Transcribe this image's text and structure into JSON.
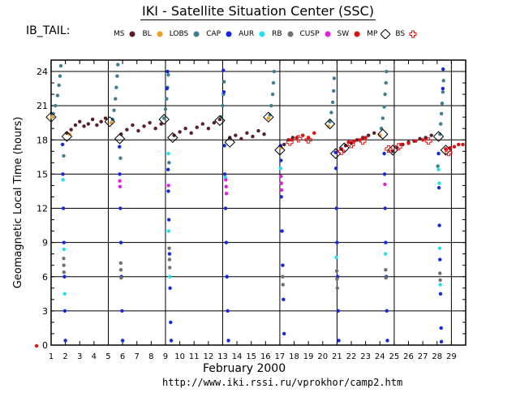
{
  "header": {
    "title": "IKI - Satellite Situation Center (SSC)",
    "region_label": "IB_TAIL:",
    "month_label": "February   2000",
    "url": "http://www.iki.rssi.ru/vprokhor/camp2.htm"
  },
  "legend": [
    {
      "label": "MS",
      "color": "#5a1e2a",
      "shape": "circle"
    },
    {
      "label": "BL",
      "color": "#f0a020",
      "shape": "circle"
    },
    {
      "label": "LOBS",
      "color": "#3a8090",
      "shape": "circle"
    },
    {
      "label": "CAP",
      "color": "#1428e0",
      "shape": "circle"
    },
    {
      "label": "AUR",
      "color": "#20e0f0",
      "shape": "circle"
    },
    {
      "label": "RB",
      "color": "#707070",
      "shape": "circle"
    },
    {
      "label": "CUSP",
      "color": "#e020e0",
      "shape": "circle"
    },
    {
      "label": "SW",
      "color": "#e01010",
      "shape": "circle"
    },
    {
      "label": "MP",
      "color": "#000000",
      "shape": "diamond"
    },
    {
      "label": "BS",
      "color": "#e01010",
      "shape": "cross"
    }
  ],
  "chart_data": {
    "type": "scatter",
    "title": "IKI - Satellite Situation Center (SSC)",
    "xlabel": "February   2000",
    "ylabel": "Geomagnetic  Local Time  (hours)",
    "xlim": [
      1,
      30
    ],
    "ylim": [
      0,
      25
    ],
    "xticks": [
      1,
      2,
      3,
      4,
      5,
      6,
      7,
      8,
      9,
      10,
      11,
      12,
      13,
      14,
      15,
      16,
      17,
      18,
      19,
      20,
      21,
      22,
      23,
      24,
      25,
      26,
      27,
      28,
      29
    ],
    "yticks": [
      0,
      3,
      6,
      9,
      12,
      15,
      18,
      21,
      24
    ],
    "grid": true,
    "series": [
      {
        "name": "MS",
        "points": [
          [
            2.1,
            18.6
          ],
          [
            2.4,
            18.9
          ],
          [
            2.7,
            19.3
          ],
          [
            3.0,
            19.6
          ],
          [
            3.3,
            19.2
          ],
          [
            3.6,
            19.4
          ],
          [
            3.9,
            19.8
          ],
          [
            4.2,
            19.3
          ],
          [
            4.5,
            19.6
          ],
          [
            4.8,
            19.9
          ],
          [
            5.9,
            18.5
          ],
          [
            6.3,
            18.9
          ],
          [
            6.7,
            19.3
          ],
          [
            7.1,
            18.8
          ],
          [
            7.5,
            19.2
          ],
          [
            7.9,
            19.5
          ],
          [
            8.3,
            19.0
          ],
          [
            8.7,
            19.4
          ],
          [
            9.6,
            18.4
          ],
          [
            10.0,
            18.7
          ],
          [
            10.4,
            19.0
          ],
          [
            10.8,
            18.6
          ],
          [
            11.2,
            19.1
          ],
          [
            11.6,
            19.4
          ],
          [
            12.0,
            19.0
          ],
          [
            12.4,
            19.5
          ],
          [
            12.8,
            19.8
          ],
          [
            13.5,
            18.2
          ],
          [
            13.9,
            18.4
          ],
          [
            14.3,
            18.1
          ],
          [
            14.7,
            18.6
          ],
          [
            15.1,
            18.3
          ],
          [
            15.5,
            18.8
          ],
          [
            15.9,
            18.5
          ],
          [
            17.3,
            17.6
          ],
          [
            17.6,
            18.0
          ],
          [
            17.9,
            18.2
          ],
          [
            21.3,
            17.2
          ],
          [
            21.6,
            17.5
          ],
          [
            22.0,
            17.7
          ],
          [
            22.4,
            18.0
          ],
          [
            22.8,
            18.2
          ],
          [
            23.2,
            18.4
          ],
          [
            23.6,
            18.6
          ],
          [
            24.0,
            18.4
          ],
          [
            24.9,
            17.0
          ],
          [
            25.2,
            17.3
          ],
          [
            25.6,
            17.6
          ],
          [
            26.0,
            17.8
          ],
          [
            26.4,
            17.9
          ],
          [
            26.8,
            18.1
          ],
          [
            27.2,
            18.2
          ],
          [
            27.6,
            18.4
          ]
        ]
      },
      {
        "name": "BL",
        "points": [
          [
            1.05,
            20.0
          ],
          [
            2.3,
            18.5
          ],
          [
            5.2,
            19.5
          ],
          [
            16.2,
            19.9
          ],
          [
            17.1,
            17.3
          ],
          [
            20.4,
            19.2
          ],
          [
            24.0,
            18.4
          ]
        ]
      },
      {
        "name": "LOBS",
        "points": [
          [
            1.15,
            20.3
          ],
          [
            1.3,
            21.0
          ],
          [
            1.45,
            21.9
          ],
          [
            1.55,
            22.8
          ],
          [
            1.62,
            23.6
          ],
          [
            1.68,
            24.5
          ],
          [
            5.3,
            19.8
          ],
          [
            5.4,
            20.6
          ],
          [
            5.5,
            21.6
          ],
          [
            5.56,
            22.6
          ],
          [
            5.62,
            23.6
          ],
          [
            5.67,
            24.6
          ],
          [
            8.9,
            19.9
          ],
          [
            9.0,
            20.7
          ],
          [
            9.08,
            21.6
          ],
          [
            9.14,
            22.6
          ],
          [
            9.2,
            23.7
          ],
          [
            12.9,
            20.0
          ],
          [
            13.0,
            21.0
          ],
          [
            13.06,
            22.0
          ],
          [
            13.1,
            23.1
          ],
          [
            16.3,
            20.2
          ],
          [
            16.4,
            21.0
          ],
          [
            16.5,
            22.0
          ],
          [
            16.55,
            23.0
          ],
          [
            16.6,
            24.0
          ],
          [
            20.5,
            19.6
          ],
          [
            20.6,
            20.4
          ],
          [
            20.7,
            21.3
          ],
          [
            20.76,
            22.3
          ],
          [
            20.8,
            23.4
          ],
          [
            24.1,
            19.0
          ],
          [
            24.2,
            19.9
          ],
          [
            24.3,
            20.9
          ],
          [
            24.36,
            22.0
          ],
          [
            24.42,
            23.0
          ],
          [
            24.46,
            24.0
          ],
          [
            28.2,
            18.5
          ],
          [
            28.25,
            19.4
          ],
          [
            28.3,
            20.3
          ],
          [
            28.35,
            21.2
          ],
          [
            28.4,
            22.2
          ],
          [
            28.45,
            23.2
          ],
          [
            1.88,
            16.6
          ],
          [
            5.85,
            16.4
          ],
          [
            9.25,
            16.0
          ],
          [
            28.05,
            15.7
          ]
        ]
      },
      {
        "name": "CAP",
        "points": [
          [
            1.8,
            17.6
          ],
          [
            1.82,
            15.0
          ],
          [
            1.86,
            12.0
          ],
          [
            1.9,
            9.0
          ],
          [
            1.93,
            6.0
          ],
          [
            1.96,
            3.0
          ],
          [
            2.0,
            0.4
          ],
          [
            5.78,
            17.4
          ],
          [
            5.8,
            15.0
          ],
          [
            5.84,
            12.0
          ],
          [
            5.88,
            9.0
          ],
          [
            5.92,
            6.0
          ],
          [
            5.96,
            3.0
          ],
          [
            6.0,
            0.4
          ],
          [
            9.18,
            15.4
          ],
          [
            9.2,
            13.5
          ],
          [
            9.24,
            11.0
          ],
          [
            9.28,
            8.0
          ],
          [
            9.32,
            5.0
          ],
          [
            9.36,
            2.0
          ],
          [
            9.4,
            0.4
          ],
          [
            9.1,
            22.5
          ],
          [
            9.15,
            24.0
          ],
          [
            13.05,
            24.1
          ],
          [
            13.08,
            22.2
          ],
          [
            13.12,
            17.5
          ],
          [
            13.15,
            15.0
          ],
          [
            13.2,
            12.0
          ],
          [
            13.25,
            9.0
          ],
          [
            13.3,
            6.0
          ],
          [
            13.35,
            3.0
          ],
          [
            13.4,
            0.4
          ],
          [
            17.05,
            17.5
          ],
          [
            17.08,
            16.2
          ],
          [
            17.1,
            13.0
          ],
          [
            17.15,
            10.0
          ],
          [
            17.2,
            7.0
          ],
          [
            17.25,
            4.0
          ],
          [
            17.3,
            1.0
          ],
          [
            20.9,
            16.9
          ],
          [
            20.93,
            15.5
          ],
          [
            20.96,
            12.0
          ],
          [
            21.0,
            9.0
          ],
          [
            21.04,
            6.0
          ],
          [
            21.08,
            3.0
          ],
          [
            21.12,
            0.4
          ],
          [
            24.3,
            16.8
          ],
          [
            24.33,
            15.0
          ],
          [
            24.36,
            12.0
          ],
          [
            24.4,
            9.0
          ],
          [
            24.44,
            6.0
          ],
          [
            24.48,
            3.0
          ],
          [
            24.52,
            0.4
          ],
          [
            28.1,
            16.8
          ],
          [
            28.13,
            13.8
          ],
          [
            28.16,
            10.5
          ],
          [
            28.2,
            7.5
          ],
          [
            28.24,
            4.5
          ],
          [
            28.28,
            1.5
          ],
          [
            28.3,
            0.3
          ],
          [
            28.42,
            24.2
          ],
          [
            28.4,
            22.5
          ]
        ]
      },
      {
        "name": "AUR",
        "points": [
          [
            1.83,
            14.5
          ],
          [
            1.9,
            8.4
          ],
          [
            1.95,
            4.5
          ],
          [
            9.2,
            16.8
          ],
          [
            9.22,
            10.0
          ],
          [
            9.3,
            6.0
          ],
          [
            13.2,
            14.7
          ],
          [
            17.05,
            15.5
          ],
          [
            17.1,
            14.2
          ],
          [
            20.95,
            7.7
          ],
          [
            24.38,
            8.0
          ],
          [
            28.1,
            15.4
          ],
          [
            28.15,
            14.2
          ],
          [
            28.18,
            8.5
          ],
          [
            28.22,
            5.3
          ]
        ]
      },
      {
        "name": "RB",
        "points": [
          [
            1.88,
            7.6
          ],
          [
            1.89,
            7.0
          ],
          [
            1.9,
            6.4
          ],
          [
            5.87,
            7.2
          ],
          [
            5.88,
            6.6
          ],
          [
            5.9,
            5.9
          ],
          [
            9.26,
            8.5
          ],
          [
            9.28,
            7.5
          ],
          [
            9.3,
            6.8
          ],
          [
            17.2,
            6.0
          ],
          [
            17.22,
            5.3
          ],
          [
            20.98,
            6.5
          ],
          [
            21.0,
            5.8
          ],
          [
            21.02,
            5.0
          ],
          [
            24.4,
            6.6
          ],
          [
            24.42,
            5.9
          ],
          [
            28.2,
            6.3
          ],
          [
            28.22,
            5.7
          ]
        ]
      },
      {
        "name": "CUSP",
        "points": [
          [
            5.8,
            14.4
          ],
          [
            5.82,
            13.9
          ],
          [
            9.21,
            14.0
          ],
          [
            13.22,
            14.5
          ],
          [
            13.24,
            13.9
          ],
          [
            13.26,
            13.3
          ],
          [
            17.08,
            14.8
          ],
          [
            17.1,
            14.2
          ],
          [
            17.12,
            13.6
          ],
          [
            24.35,
            14.1
          ]
        ]
      },
      {
        "name": "SW",
        "points": [
          [
            17.8,
            18.0
          ],
          [
            18.2,
            18.2
          ],
          [
            18.6,
            18.4
          ],
          [
            19.0,
            18.2
          ],
          [
            19.4,
            18.6
          ],
          [
            21.8,
            17.8
          ],
          [
            22.2,
            17.9
          ],
          [
            22.6,
            18.0
          ],
          [
            23.0,
            18.2
          ],
          [
            25.5,
            17.6
          ],
          [
            26.0,
            17.7
          ],
          [
            26.5,
            17.9
          ],
          [
            27.0,
            18.0
          ],
          [
            28.6,
            17.2
          ],
          [
            28.9,
            17.3
          ],
          [
            29.2,
            17.4
          ],
          [
            29.5,
            17.6
          ],
          [
            29.8,
            17.6
          ]
        ]
      },
      {
        "name": "MP",
        "points": [
          [
            1.0,
            20.0
          ],
          [
            2.1,
            18.3
          ],
          [
            5.1,
            19.6
          ],
          [
            5.8,
            18.1
          ],
          [
            8.9,
            19.8
          ],
          [
            9.5,
            18.2
          ],
          [
            12.8,
            19.7
          ],
          [
            13.5,
            17.8
          ],
          [
            16.2,
            20.0
          ],
          [
            17.0,
            17.1
          ],
          [
            20.5,
            19.4
          ],
          [
            20.9,
            16.8
          ],
          [
            21.5,
            17.3
          ],
          [
            24.2,
            18.5
          ],
          [
            24.9,
            17.1
          ],
          [
            28.1,
            18.3
          ],
          [
            28.6,
            17.1
          ]
        ]
      },
      {
        "name": "BS",
        "points": [
          [
            17.7,
            17.8
          ],
          [
            18.3,
            18.1
          ],
          [
            19.0,
            18.0
          ],
          [
            21.3,
            17.0
          ],
          [
            22.0,
            17.6
          ],
          [
            22.8,
            17.9
          ],
          [
            24.6,
            17.2
          ],
          [
            25.3,
            17.4
          ],
          [
            27.4,
            17.9
          ],
          [
            28.8,
            16.9
          ]
        ]
      }
    ]
  }
}
